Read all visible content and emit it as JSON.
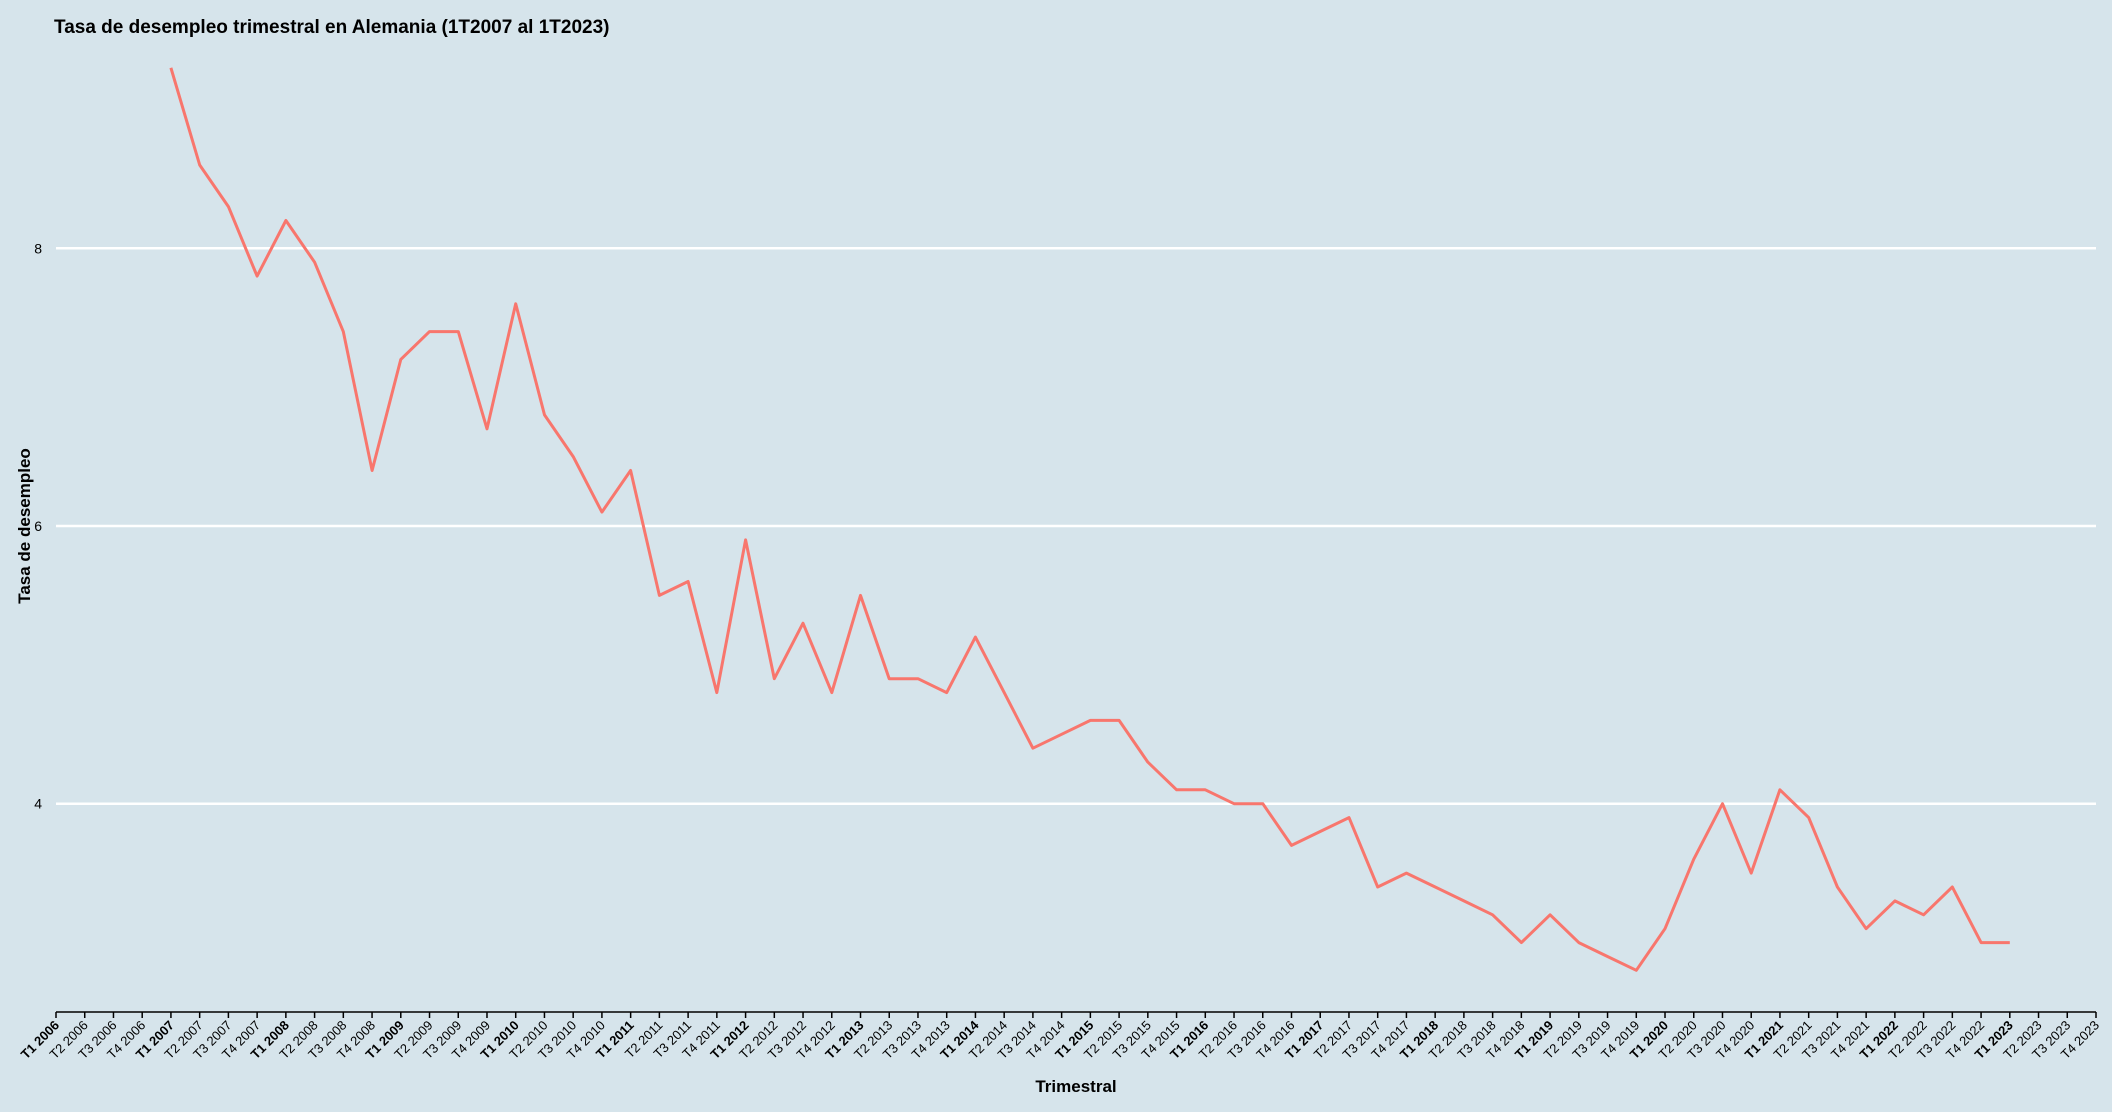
{
  "chart_data": {
    "type": "line",
    "title": "Tasa de desempleo trimestral en Alemania (1T2007 al 1T2023)",
    "xlabel": "Trimestral",
    "ylabel": "Tasa de desempleo",
    "ylim": [
      2.5,
      9.5
    ],
    "yticks": [
      4,
      6,
      8
    ],
    "grid": true,
    "line_color": "#f8766d",
    "background_color": "#d6e4eb",
    "categories": [
      "T1 2006",
      "T2 2006",
      "T3 2006",
      "T4 2006",
      "T1 2007",
      "T2 2007",
      "T3 2007",
      "T4 2007",
      "T1 2008",
      "T2 2008",
      "T3 2008",
      "T4 2008",
      "T1 2009",
      "T2 2009",
      "T3 2009",
      "T4 2009",
      "T1 2010",
      "T2 2010",
      "T3 2010",
      "T4 2010",
      "T1 2011",
      "T2 2011",
      "T3 2011",
      "T4 2011",
      "T1 2012",
      "T2 2012",
      "T3 2012",
      "T4 2012",
      "T1 2013",
      "T2 2013",
      "T3 2013",
      "T4 2013",
      "T1 2014",
      "T2 2014",
      "T3 2014",
      "T4 2014",
      "T1 2015",
      "T2 2015",
      "T3 2015",
      "T4 2015",
      "T1 2016",
      "T2 2016",
      "T3 2016",
      "T4 2016",
      "T1 2017",
      "T2 2017",
      "T3 2017",
      "T4 2017",
      "T1 2018",
      "T2 2018",
      "T3 2018",
      "T4 2018",
      "T1 2019",
      "T2 2019",
      "T3 2019",
      "T4 2019",
      "T1 2020",
      "T2 2020",
      "T3 2020",
      "T4 2020",
      "T1 2021",
      "T2 2021",
      "T3 2021",
      "T4 2021",
      "T1 2022",
      "T2 2022",
      "T3 2022",
      "T4 2022",
      "T1 2023",
      "T2 2023",
      "T3 2023",
      "T4 2023"
    ],
    "series": [
      {
        "x": [
          "T1 2007",
          "T2 2007",
          "T3 2007",
          "T4 2007",
          "T1 2008",
          "T2 2008",
          "T3 2008",
          "T4 2008",
          "T1 2009",
          "T2 2009",
          "T3 2009",
          "T4 2009",
          "T1 2010",
          "T2 2010",
          "T3 2010",
          "T4 2010",
          "T1 2011",
          "T2 2011",
          "T3 2011",
          "T4 2011",
          "T1 2012",
          "T2 2012",
          "T3 2012",
          "T4 2012",
          "T1 2013",
          "T2 2013",
          "T3 2013",
          "T4 2013",
          "T1 2014",
          "T2 2014",
          "T3 2014",
          "T4 2014",
          "T1 2015",
          "T2 2015",
          "T3 2015",
          "T4 2015",
          "T1 2016",
          "T2 2016",
          "T3 2016",
          "T4 2016",
          "T1 2017",
          "T2 2017",
          "T3 2017",
          "T4 2017",
          "T1 2018",
          "T2 2018",
          "T3 2018",
          "T4 2018",
          "T1 2019",
          "T2 2019",
          "T3 2019",
          "T4 2019",
          "T1 2020",
          "T2 2020",
          "T3 2020",
          "T4 2020",
          "T1 2021",
          "T2 2021",
          "T3 2021",
          "T4 2021",
          "T1 2022",
          "T2 2022",
          "T3 2022",
          "T4 2022",
          "T1 2023"
        ],
        "values": [
          9.3,
          8.6,
          8.3,
          7.8,
          8.2,
          7.9,
          7.4,
          6.4,
          7.2,
          7.4,
          7.4,
          6.7,
          7.6,
          6.8,
          6.5,
          6.1,
          6.4,
          5.5,
          5.6,
          4.8,
          5.9,
          4.9,
          5.3,
          4.8,
          5.5,
          4.9,
          4.9,
          4.8,
          5.2,
          4.8,
          4.4,
          4.5,
          4.6,
          4.6,
          4.3,
          4.1,
          4.1,
          4.0,
          4.0,
          3.7,
          3.8,
          3.9,
          3.4,
          3.5,
          3.4,
          3.3,
          3.2,
          3.0,
          3.2,
          3.0,
          2.9,
          2.8,
          3.1,
          3.6,
          4.0,
          3.5,
          4.1,
          3.9,
          3.4,
          3.1,
          3.3,
          3.2,
          3.4,
          3.0,
          3.0
        ]
      }
    ]
  }
}
